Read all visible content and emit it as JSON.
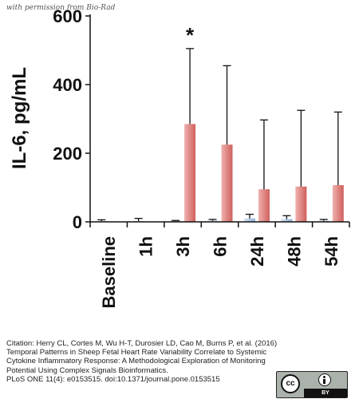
{
  "watermark": "with permission from Bio-Rad",
  "chart_data": {
    "type": "bar",
    "ylabel": "IL-6, pg/mL",
    "ylim": [
      0,
      600
    ],
    "yticks": [
      0,
      200,
      400,
      600
    ],
    "categories": [
      "Baseline",
      "1h",
      "3h",
      "6h",
      "24h",
      "48h",
      "54h"
    ],
    "series": [
      {
        "color": "#a9c4e4",
        "values": [
          2,
          2,
          2,
          3,
          10,
          8,
          3
        ],
        "error": [
          4,
          8,
          2,
          4,
          12,
          10,
          4
        ]
      },
      {
        "color": "#d96a66",
        "values": [
          0,
          0,
          285,
          225,
          95,
          103,
          107
        ],
        "error": [
          0,
          0,
          220,
          230,
          202,
          222,
          213
        ]
      }
    ],
    "annotations": [
      {
        "category": "3h",
        "text": "*"
      }
    ],
    "grid": false,
    "legend": "none"
  },
  "citation": {
    "line1": "Citation: Herry CL, Cortes M, Wu H-T, Durosier LD, Cao M, Burns P, et al. (2016)",
    "line2": "Temporal Patterns in Sheep Fetal Heart Rate Variability Correlate to Systemic Cytokine Inflammatory Response: A Methodological Exploration of Monitoring Potential Using Complex Signals Bioinformatics.",
    "line3": "PLoS ONE 11(4): e0153515. doi:10.1371/journal.pone.0153515"
  },
  "license": {
    "cc": "cc",
    "by": "BY"
  }
}
